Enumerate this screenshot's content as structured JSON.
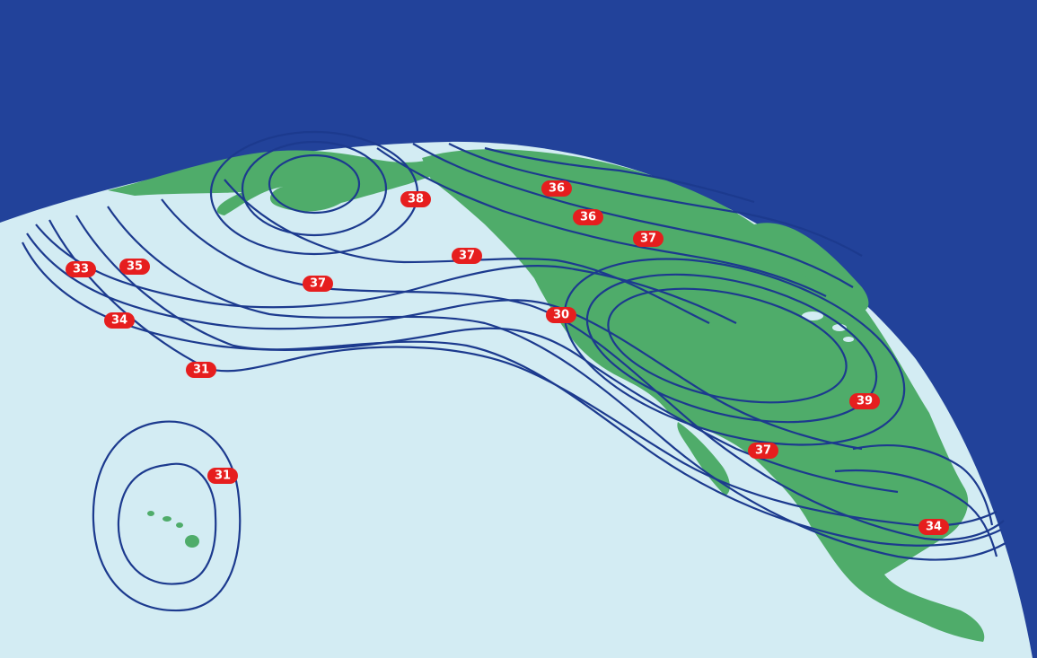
{
  "colors": {
    "sky": "#22429a",
    "ocean": "#d3ecf3",
    "land": "#4fac6a",
    "contour": "#1c3a8e",
    "label": "#e61e1e",
    "label_text": "#ffffff"
  },
  "contour_labels": [
    {
      "id": "label-38-alaska",
      "text": "38"
    },
    {
      "id": "label-36-canada-north",
      "text": "36"
    },
    {
      "id": "label-36-canada-mid",
      "text": "36"
    },
    {
      "id": "label-37-canada-south",
      "text": "37"
    },
    {
      "id": "label-37-pacific-northwest",
      "text": "37"
    },
    {
      "id": "label-33-far-west",
      "text": "33"
    },
    {
      "id": "label-35-west",
      "text": "35"
    },
    {
      "id": "label-37-pacific",
      "text": "37"
    },
    {
      "id": "label-34-west",
      "text": "34"
    },
    {
      "id": "label-31-pacific-south",
      "text": "31"
    },
    {
      "id": "label-31-hawaii",
      "text": "31"
    },
    {
      "id": "label-30-california",
      "text": "30"
    },
    {
      "id": "label-39-east",
      "text": "39"
    },
    {
      "id": "label-37-texas",
      "text": "37"
    },
    {
      "id": "label-34-mexico",
      "text": "34"
    }
  ]
}
